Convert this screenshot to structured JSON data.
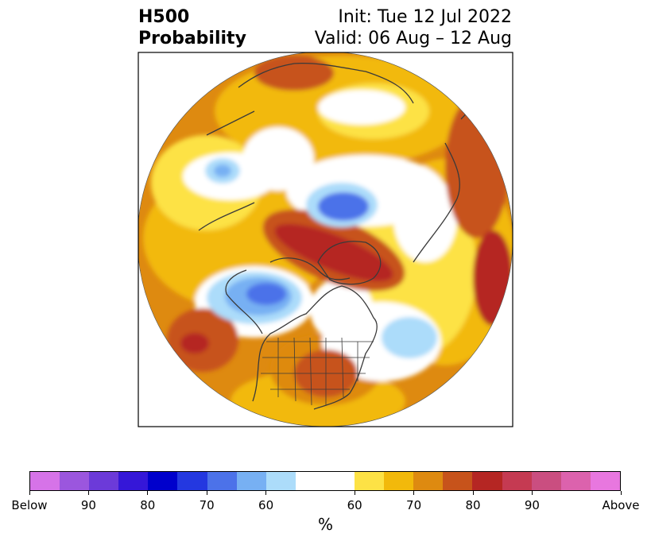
{
  "header": {
    "title_line1": "H500",
    "title_line2": "Probability",
    "init": "Init: Tue 12 Jul 2022",
    "valid": "Valid: 06 Aug – 12 Aug"
  },
  "map": {
    "projection": "north-polar-stereographic",
    "land_fill": "#ffffff",
    "coastline_color": "#3a3a3a"
  },
  "colorbar": {
    "segments": [
      {
        "label": "Below",
        "color": "#d673e8"
      },
      {
        "color": "#9b56de"
      },
      {
        "color": "#6c3ad9"
      },
      {
        "color": "#3517d8"
      },
      {
        "color": "#0000cc"
      },
      {
        "color": "#2438e0"
      },
      {
        "color": "#4c72e9"
      },
      {
        "color": "#77b0f3"
      },
      {
        "color": "#acdcfa"
      },
      {
        "color": "#ffffff",
        "wide": true
      },
      {
        "color": "#fde245"
      },
      {
        "color": "#f2b90b"
      },
      {
        "color": "#de8a10"
      },
      {
        "color": "#c7531b"
      },
      {
        "color": "#b52623"
      },
      {
        "color": "#c53a52"
      },
      {
        "color": "#ca4e80"
      },
      {
        "color": "#dc62ad"
      },
      {
        "color": "#e877df"
      }
    ],
    "tick_labels": [
      "Below",
      "90",
      "80",
      "70",
      "60",
      "60",
      "70",
      "80",
      "90",
      "Above"
    ],
    "unit": "%"
  }
}
